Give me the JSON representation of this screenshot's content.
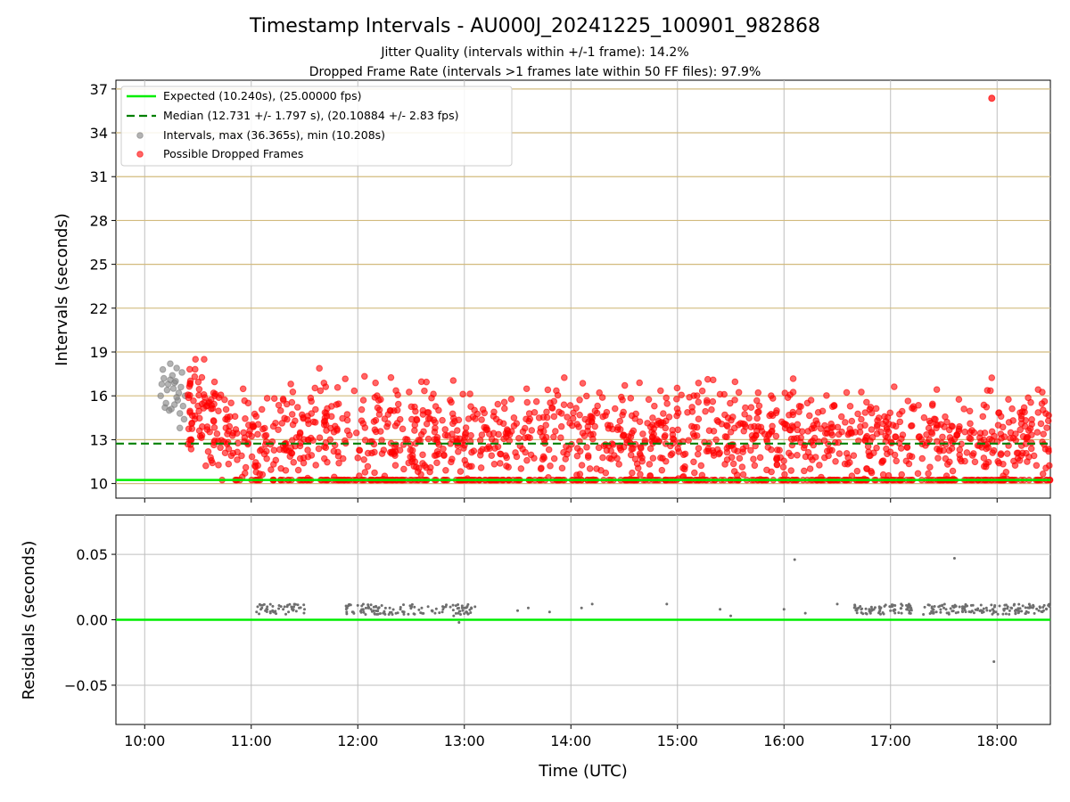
{
  "chart_data": {
    "title": "Timestamp Intervals - AU000J_20241225_100901_982868",
    "subtitle_lines": [
      "Jitter Quality (intervals within +/-1 frame): 14.2%",
      "Dropped Frame Rate (intervals >1 frames late within 50 FF files): 97.9%"
    ],
    "xlabel": "Time (UTC)",
    "x_ticks": [
      "10:00",
      "11:00",
      "12:00",
      "13:00",
      "14:00",
      "15:00",
      "16:00",
      "17:00",
      "18:00"
    ],
    "x_tick_hours": [
      10,
      11,
      12,
      13,
      14,
      15,
      16,
      17,
      18
    ],
    "xlim_hours": [
      9.73,
      18.5
    ],
    "panels": [
      {
        "type": "scatter",
        "ylabel": "Intervals (seconds)",
        "ylim": [
          9.0,
          37.6
        ],
        "y_ticks": [
          10,
          13,
          16,
          19,
          22,
          25,
          28,
          31,
          34,
          37
        ],
        "grid": "x gray, y tan",
        "legend_position": "upper-left",
        "legend": [
          {
            "label": "Expected (10.240s), (25.00000 fps)",
            "style": "solid-line",
            "color": "#00ee00"
          },
          {
            "label": "Median (12.731 +/- 1.797 s), (20.10884 +/- 2.83 fps)",
            "style": "dashed-line",
            "color": "#008000"
          },
          {
            "label": "Intervals, max (36.365s), min (10.208s)",
            "style": "marker",
            "color": "#808080"
          },
          {
            "label": "Possible Dropped Frames",
            "style": "marker",
            "color": "#ff0000"
          }
        ],
        "expected_line": 10.24,
        "median_line": 12.731,
        "intervals_gray": {
          "x_hours": [
            10.15,
            10.18,
            10.2,
            10.22,
            10.24,
            10.25,
            10.27,
            10.29,
            10.3,
            10.32,
            10.33,
            10.35,
            10.36,
            10.38,
            10.17,
            10.21,
            10.23,
            10.26,
            10.28,
            10.31,
            10.34,
            10.19,
            10.3,
            10.37,
            10.16,
            10.28,
            10.24,
            10.33
          ],
          "values": [
            16.0,
            17.2,
            15.5,
            16.8,
            18.2,
            15.1,
            16.5,
            17.0,
            15.9,
            16.2,
            14.8,
            17.6,
            15.3,
            16.0,
            17.8,
            16.4,
            15.0,
            17.4,
            16.9,
            15.7,
            16.6,
            15.2,
            17.9,
            14.4,
            16.8,
            15.4,
            17.1,
            13.8
          ]
        },
        "dropped_summary": {
          "count_visible": "dense",
          "x_range_hours": [
            10.4,
            18.5
          ],
          "value_band_typical": [
            10.24,
            16.5
          ],
          "outlier": {
            "x_hour": 17.95,
            "value": 36.365
          }
        }
      },
      {
        "type": "scatter",
        "ylabel": "Residuals (seconds)",
        "ylim": [
          -0.08,
          0.08
        ],
        "y_ticks": [
          "0.05",
          "0.00",
          "−0.05"
        ],
        "y_tick_values": [
          0.05,
          0.0,
          -0.05
        ],
        "zero_line": 0.0,
        "grid": "both gray",
        "residuals": {
          "x_hours": [
            11.05,
            11.1,
            11.15,
            11.2,
            11.3,
            11.35,
            11.4,
            11.45,
            11.5,
            11.9,
            11.95,
            12.0,
            12.05,
            12.1,
            12.15,
            12.3,
            12.4,
            12.5,
            12.6,
            12.7,
            12.8,
            12.9,
            12.95,
            13.0,
            13.1,
            13.5,
            13.6,
            13.8,
            14.1,
            14.2,
            14.9,
            15.4,
            15.5,
            16.0,
            16.1,
            16.2,
            16.5,
            16.7,
            16.8,
            16.9,
            17.0,
            17.1,
            17.4,
            17.5,
            17.6,
            17.7,
            17.9,
            17.97,
            18.1,
            18.2,
            18.3,
            18.4,
            18.48
          ],
          "values": [
            0.006,
            0.009,
            0.01,
            0.007,
            0.008,
            0.006,
            0.01,
            0.009,
            0.008,
            0.009,
            0.006,
            0.011,
            0.008,
            0.01,
            0.007,
            0.009,
            0.008,
            0.01,
            0.009,
            0.007,
            0.008,
            0.003,
            -0.002,
            0.009,
            0.01,
            0.007,
            0.009,
            0.006,
            0.009,
            0.012,
            0.012,
            0.008,
            0.003,
            0.008,
            0.046,
            0.005,
            0.012,
            0.009,
            0.008,
            0.007,
            0.01,
            0.012,
            0.008,
            0.009,
            0.047,
            0.01,
            0.009,
            -0.032,
            0.01,
            0.008,
            0.009,
            0.01,
            0.011
          ]
        }
      }
    ]
  },
  "colors": {
    "expected": "#00ee00",
    "median": "#008000",
    "intervals": "#808080",
    "dropped": "#ff0000",
    "grid_x": "#bfbfbf",
    "grid_y_top": "#d2bb7e",
    "residual_points": "#6e6e6e"
  }
}
